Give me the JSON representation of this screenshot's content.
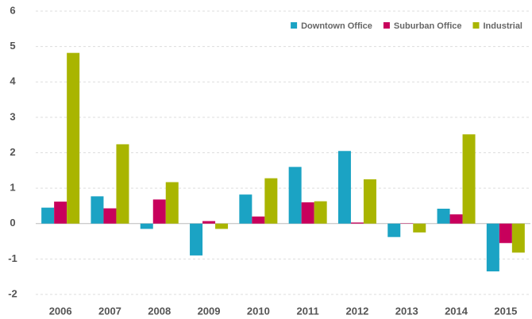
{
  "chart_data": {
    "type": "bar",
    "categories": [
      "2006",
      "2007",
      "2008",
      "2009",
      "2010",
      "2011",
      "2012",
      "2013",
      "2014",
      "2015"
    ],
    "series": [
      {
        "name": "Downtown Office",
        "color": "#1ba3c4",
        "values": [
          0.45,
          0.77,
          -0.15,
          -0.9,
          0.82,
          1.6,
          2.05,
          -0.38,
          0.42,
          -1.35
        ]
      },
      {
        "name": "Suburban Office",
        "color": "#c8005c",
        "values": [
          0.62,
          0.43,
          0.68,
          0.07,
          0.2,
          0.6,
          0.03,
          0.01,
          0.26,
          -0.55
        ]
      },
      {
        "name": "Industrial",
        "color": "#a9b500",
        "values": [
          4.82,
          2.24,
          1.17,
          -0.15,
          1.28,
          0.63,
          1.25,
          -0.25,
          2.52,
          -0.82
        ]
      }
    ],
    "ylim": [
      -2,
      6
    ],
    "yticks": [
      -2,
      -1,
      0,
      1,
      2,
      3,
      4,
      5,
      6
    ],
    "grid": true,
    "legend": "top-right"
  }
}
